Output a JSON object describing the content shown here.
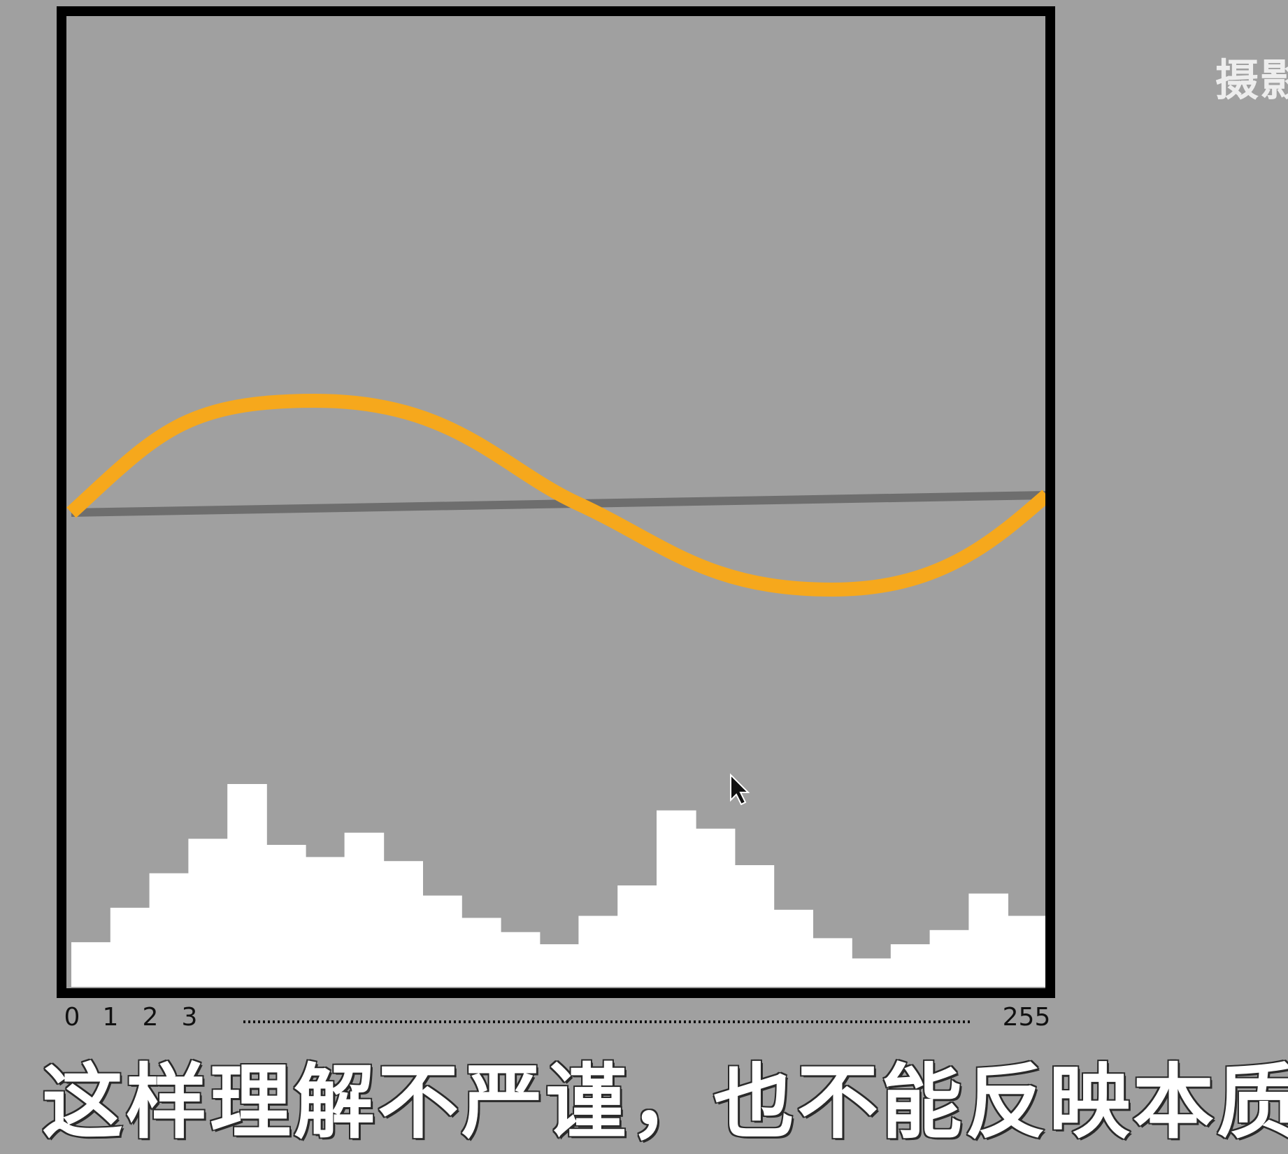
{
  "overlay": {
    "watermark": "摄影",
    "subtitle": "这样理解不严谨，也不能反映本质"
  },
  "colors": {
    "background": "#a0a0a0",
    "frame": "#000000",
    "curve": "#f6a81c",
    "baseline": "#6e6e6e",
    "histogram": "#ffffff"
  },
  "chart_data": {
    "type": "bar",
    "title": "",
    "xlabel": "",
    "ylabel": "",
    "xlim": [
      0,
      255
    ],
    "ylim": [
      0,
      100
    ],
    "grid": false,
    "x_tick_labels": [
      {
        "x": 0,
        "label": "0"
      },
      {
        "x": 1,
        "label": "1"
      },
      {
        "x": 2,
        "label": "2"
      },
      {
        "x": 3,
        "label": "3"
      },
      {
        "x": 255,
        "label": "255"
      }
    ],
    "histogram_values": [
      22,
      39,
      56,
      73,
      100,
      70,
      64,
      76,
      62,
      45,
      34,
      27,
      21,
      35,
      50,
      87,
      78,
      60,
      38,
      24,
      14,
      21,
      28,
      46,
      35
    ],
    "tone_curve": {
      "start": 0,
      "end": 5,
      "peak": 32,
      "trough": -22,
      "peak_x": 0.25,
      "trough_x": 0.78,
      "cross_x": 0.52
    }
  }
}
